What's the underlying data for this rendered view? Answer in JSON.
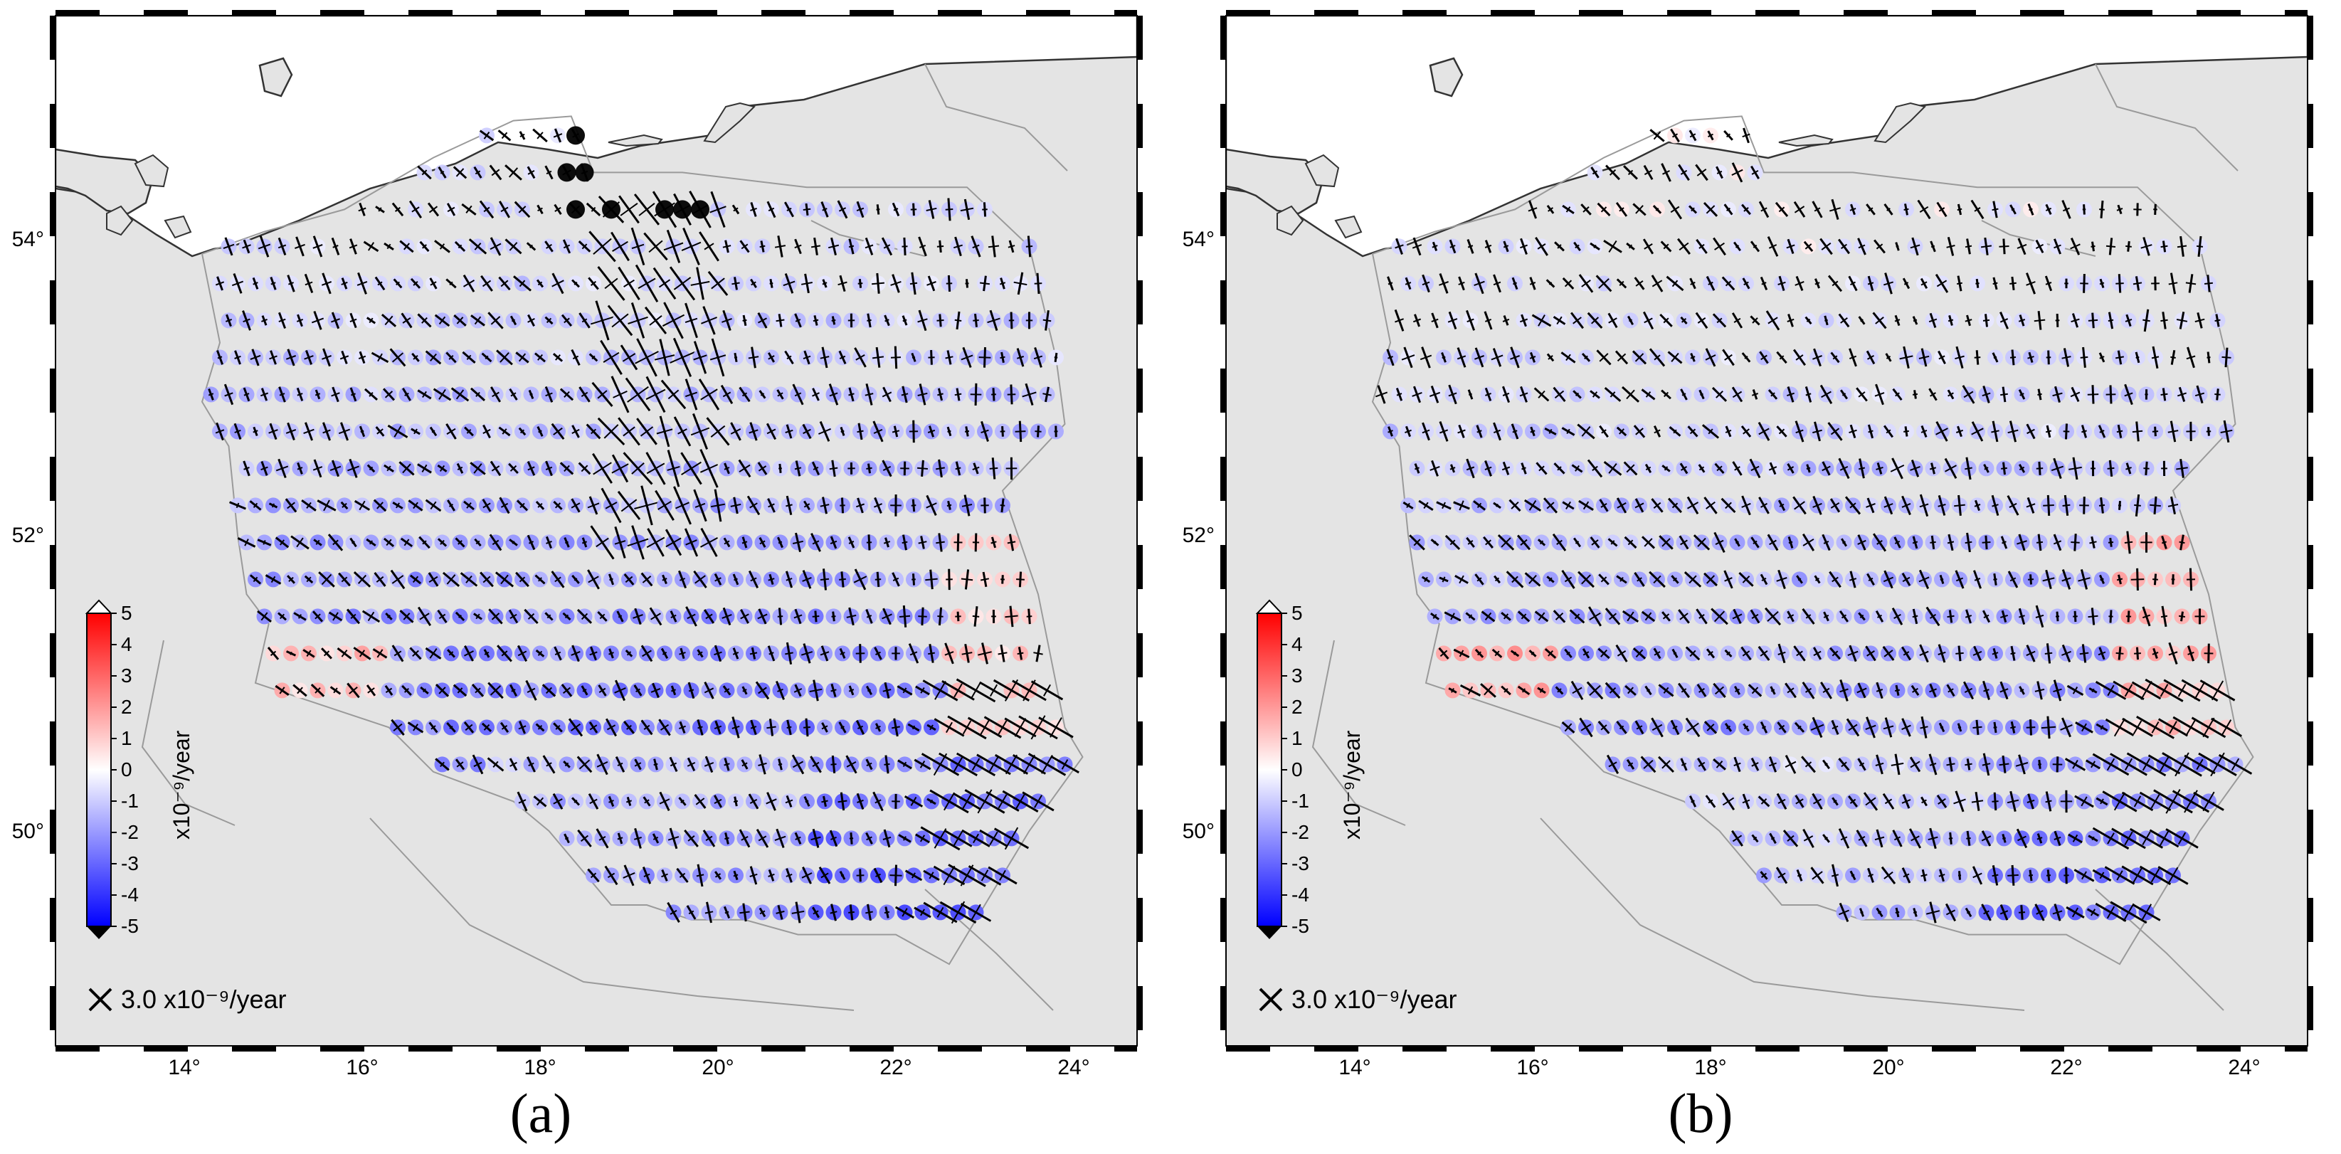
{
  "panels": [
    {
      "label": "(a)",
      "variant": "a"
    },
    {
      "label": "(b)",
      "variant": "b"
    }
  ],
  "axes": {
    "lon_ticks": [
      "14°",
      "16°",
      "18°",
      "20°",
      "22°",
      "24°"
    ],
    "lat_ticks": [
      "50°",
      "52°",
      "54°"
    ]
  },
  "colorbar": {
    "label": "x10⁻⁹/year",
    "ticks": [
      "5",
      "4",
      "3",
      "2",
      "1",
      "0",
      "-1",
      "-2",
      "-3",
      "-4",
      "-5"
    ],
    "colors": {
      "max": "#ff0000",
      "mid": "#ffffff",
      "min": "#0000ff"
    }
  },
  "legend": {
    "scale_text": "3.0 x10⁻⁹/year",
    "icon": "strain-cross-icon"
  },
  "colors": {
    "land": "#e4e4e4",
    "sea": "#ffffff",
    "coast": "#333333",
    "border": "#9a9a9a",
    "cross": "#000000"
  }
}
